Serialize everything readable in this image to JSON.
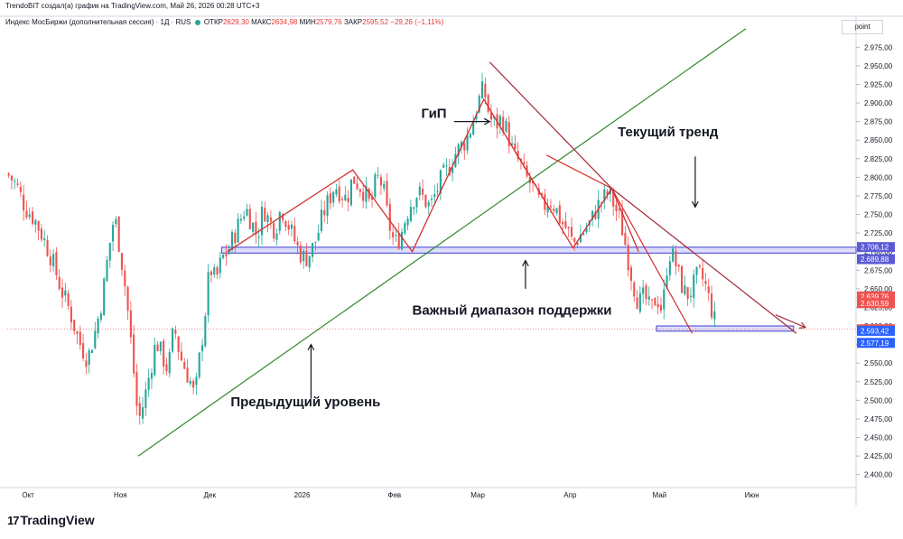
{
  "header": {
    "attribution": "TrendoBIT создал(а) график на TradingView.com, Май 26, 2026 00:28 UTC+3"
  },
  "instrument": {
    "name": "Индекс МосБиржи (дополнительная сессия) · 1Д · RUS",
    "open_label": "ОТКР",
    "open": "2629,30",
    "high_label": "МАКС",
    "high": "2634,98",
    "low_label": "МИН",
    "low": "2579,76",
    "close_label": "ЗАКР",
    "close": "2595,52",
    "change": "−29,26 (−1,11%)"
  },
  "unit": "point",
  "logo": {
    "text": "TradingView",
    "mark": "17"
  },
  "colors": {
    "up": "#26a69a",
    "down": "#ef5350",
    "trend_line": "#2e8b2e",
    "pattern": "#d32f2f",
    "channel": "#a52a3a",
    "zone": "#5b5bd6"
  },
  "chart_data": {
    "type": "candlestick",
    "x_labels": [
      {
        "label": "Окт",
        "x": 7
      },
      {
        "label": "Ноя",
        "x": 38
      },
      {
        "label": "Дек",
        "x": 68
      },
      {
        "label": "2026",
        "x": 99
      },
      {
        "label": "Фев",
        "x": 130
      },
      {
        "label": "Мар",
        "x": 158
      },
      {
        "label": "Апр",
        "x": 189
      },
      {
        "label": "Май",
        "x": 219
      },
      {
        "label": "Июн",
        "x": 250
      }
    ],
    "x_range": [
      0,
      285
    ],
    "y_ticks": [
      "2.975,00",
      "2.950,00",
      "2.925,00",
      "2.900,00",
      "2.875,00",
      "2.850,00",
      "2.825,00",
      "2.800,00",
      "2.775,00",
      "2.750,00",
      "2.725,00",
      "2.700,00",
      "2.675,00",
      "2.650,00",
      "2.625,00",
      "2.600,00",
      "2.575,00",
      "2.550,00",
      "2.525,00",
      "2.500,00",
      "2.475,00",
      "2.450,00",
      "2.425,00",
      "2.400,00"
    ],
    "y_tick_values": [
      2975,
      2950,
      2925,
      2900,
      2875,
      2850,
      2825,
      2800,
      2775,
      2750,
      2725,
      2700,
      2675,
      2650,
      2625,
      2600,
      2575,
      2550,
      2525,
      2500,
      2475,
      2450,
      2425,
      2400
    ],
    "y_range": [
      2385,
      2990
    ],
    "price_labels": [
      {
        "value": 2706.12,
        "text": "2.706,12",
        "color": "#5b5bd6"
      },
      {
        "value": 2689.88,
        "text": "2.689,88",
        "color": "#5b5bd6"
      },
      {
        "value": 2639.76,
        "text": "2.639,76",
        "color": "#ef5350"
      },
      {
        "value": 2630.59,
        "text": "2.630,59",
        "color": "#ef5350"
      },
      {
        "value": 2595.52,
        "text": "2.595,52",
        "color": "#ef5350"
      },
      {
        "value": 2593.42,
        "text": "2.593,42",
        "color": "#2962ff"
      },
      {
        "value": 2577.19,
        "text": "2.577,19",
        "color": "#2962ff"
      }
    ],
    "close_line": 2595.52,
    "close_series": [
      [
        0,
        2805
      ],
      [
        3,
        2790
      ],
      [
        6,
        2760
      ],
      [
        9,
        2745
      ],
      [
        12,
        2720
      ],
      [
        15,
        2690
      ],
      [
        18,
        2650
      ],
      [
        21,
        2620
      ],
      [
        24,
        2580
      ],
      [
        27,
        2555
      ],
      [
        30,
        2600
      ],
      [
        32,
        2640
      ],
      [
        34,
        2700
      ],
      [
        36,
        2750
      ],
      [
        38,
        2700
      ],
      [
        40,
        2640
      ],
      [
        42,
        2560
      ],
      [
        44,
        2470
      ],
      [
        46,
        2500
      ],
      [
        48,
        2540
      ],
      [
        50,
        2580
      ],
      [
        52,
        2560
      ],
      [
        54,
        2540
      ],
      [
        56,
        2600
      ],
      [
        58,
        2560
      ],
      [
        60,
        2540
      ],
      [
        62,
        2520
      ],
      [
        63,
        2500
      ],
      [
        64,
        2540
      ],
      [
        66,
        2600
      ],
      [
        68,
        2680
      ],
      [
        70,
        2660
      ],
      [
        72,
        2690
      ],
      [
        74,
        2700
      ],
      [
        76,
        2720
      ],
      [
        78,
        2740
      ],
      [
        80,
        2760
      ],
      [
        82,
        2740
      ],
      [
        84,
        2720
      ],
      [
        86,
        2760
      ],
      [
        88,
        2740
      ],
      [
        90,
        2730
      ],
      [
        92,
        2760
      ],
      [
        94,
        2740
      ],
      [
        96,
        2720
      ],
      [
        98,
        2700
      ],
      [
        100,
        2690
      ],
      [
        102,
        2700
      ],
      [
        104,
        2720
      ],
      [
        106,
        2750
      ],
      [
        108,
        2770
      ],
      [
        110,
        2790
      ],
      [
        112,
        2780
      ],
      [
        114,
        2770
      ],
      [
        116,
        2800
      ],
      [
        118,
        2790
      ],
      [
        120,
        2780
      ],
      [
        122,
        2760
      ],
      [
        124,
        2800
      ],
      [
        126,
        2790
      ],
      [
        128,
        2740
      ],
      [
        130,
        2710
      ],
      [
        132,
        2720
      ],
      [
        134,
        2750
      ],
      [
        136,
        2770
      ],
      [
        138,
        2780
      ],
      [
        140,
        2770
      ],
      [
        142,
        2760
      ],
      [
        144,
        2780
      ],
      [
        146,
        2800
      ],
      [
        148,
        2810
      ],
      [
        150,
        2830
      ],
      [
        152,
        2840
      ],
      [
        154,
        2850
      ],
      [
        156,
        2870
      ],
      [
        158,
        2900
      ],
      [
        160,
        2920
      ],
      [
        162,
        2880
      ],
      [
        164,
        2870
      ],
      [
        166,
        2880
      ],
      [
        168,
        2860
      ],
      [
        170,
        2830
      ],
      [
        172,
        2820
      ],
      [
        174,
        2800
      ],
      [
        176,
        2790
      ],
      [
        178,
        2770
      ],
      [
        180,
        2760
      ],
      [
        182,
        2770
      ],
      [
        184,
        2760
      ],
      [
        186,
        2740
      ],
      [
        188,
        2730
      ],
      [
        190,
        2710
      ],
      [
        192,
        2720
      ],
      [
        194,
        2730
      ],
      [
        196,
        2740
      ],
      [
        198,
        2760
      ],
      [
        200,
        2770
      ],
      [
        202,
        2780
      ],
      [
        204,
        2760
      ],
      [
        206,
        2740
      ],
      [
        208,
        2700
      ],
      [
        210,
        2660
      ],
      [
        212,
        2630
      ],
      [
        214,
        2640
      ],
      [
        216,
        2620
      ],
      [
        218,
        2640
      ],
      [
        220,
        2620
      ],
      [
        222,
        2700
      ],
      [
        224,
        2690
      ],
      [
        226,
        2660
      ],
      [
        228,
        2640
      ],
      [
        230,
        2650
      ],
      [
        232,
        2670
      ],
      [
        234,
        2660
      ],
      [
        236,
        2630
      ],
      [
        238,
        2600
      ]
    ],
    "support_zone": {
      "x0": 72,
      "x1": 285,
      "y_low": 2698,
      "y_high": 2706
    },
    "lower_zone": {
      "x0": 218,
      "x1": 264,
      "y_low": 2593,
      "y_high": 2600
    },
    "trendline": [
      [
        44,
        2425
      ],
      [
        248,
        3000
      ]
    ],
    "head_shoulders": [
      [
        74,
        2700
      ],
      [
        116,
        2810
      ],
      [
        136,
        2700
      ],
      [
        160,
        2905
      ],
      [
        190,
        2705
      ],
      [
        203,
        2785
      ],
      [
        212,
        2700
      ]
    ],
    "channel_upper": [
      [
        162,
        2955
      ],
      [
        203,
        2785
      ],
      [
        265,
        2590
      ]
    ],
    "channel_lower": [
      [
        181,
        2830
      ],
      [
        203,
        2785
      ],
      [
        230,
        2590
      ]
    ],
    "annotations": [
      {
        "text": "ГиП",
        "x": 139,
        "y": 2880
      },
      {
        "text": "Текущий тренд",
        "x": 205,
        "y": 2855
      },
      {
        "text": "Важный диапазон поддержки",
        "x": 136,
        "y": 2615
      },
      {
        "text": "Предыдущий уровень",
        "x": 75,
        "y": 2492
      }
    ],
    "arrows": [
      {
        "from": [
          150,
          2875
        ],
        "to": [
          162,
          2875
        ]
      },
      {
        "from": [
          231,
          2828
        ],
        "to": [
          231,
          2760
        ]
      },
      {
        "from": [
          174,
          2650
        ],
        "to": [
          174,
          2688
        ]
      },
      {
        "from": [
          102,
          2502
        ],
        "to": [
          102,
          2575
        ]
      },
      {
        "from": [
          258,
          2615
        ],
        "to": [
          268,
          2598
        ]
      }
    ]
  }
}
